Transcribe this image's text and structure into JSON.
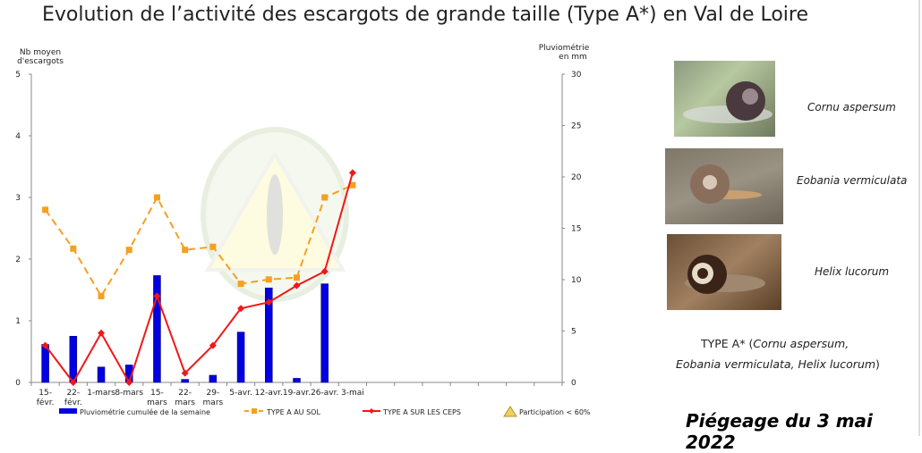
{
  "title": "Evolution de l’activité des escargots de grande taille (Type A*) en Val de Loire",
  "chart_data": {
    "type": "bar+line",
    "left_axis": {
      "label_line1": "Nb moyen",
      "label_line2": "d'escargots",
      "range": [
        0,
        5
      ],
      "ticks": [
        "0",
        "1",
        "2",
        "3",
        "4",
        "5"
      ]
    },
    "right_axis": {
      "label_line1": "Pluviométrie",
      "label_line2": "en mm",
      "range": [
        0,
        30
      ],
      "ticks": [
        "0",
        "5",
        "10",
        "15",
        "20",
        "25",
        "30"
      ]
    },
    "categories": [
      [
        "15-",
        "févr."
      ],
      [
        "22-",
        "févr."
      ],
      [
        "1-mars",
        ""
      ],
      [
        "8-mars",
        ""
      ],
      [
        "15-",
        "mars"
      ],
      [
        "22-",
        "mars"
      ],
      [
        "29-",
        "mars"
      ],
      [
        "5-avr.",
        ""
      ],
      [
        "12-avr.",
        ""
      ],
      [
        "19-avr.",
        ""
      ],
      [
        "26-avr.",
        ""
      ],
      [
        "3-mai",
        ""
      ]
    ],
    "series": [
      {
        "name": "Pluviométrie cumulée de la semaine",
        "type": "bar",
        "axis": "right",
        "color": "#0000e0",
        "values": [
          3.7,
          4.5,
          1.5,
          1.7,
          10.4,
          0.3,
          0.7,
          4.9,
          9.2,
          0.4,
          9.6,
          null
        ]
      },
      {
        "name": "TYPE A AU SOL",
        "type": "line-dashed",
        "axis": "left",
        "color": "#f5a020",
        "values": [
          2.8,
          2.17,
          1.4,
          2.15,
          3.0,
          2.15,
          2.2,
          1.6,
          1.67,
          1.7,
          3.0,
          3.2
        ]
      },
      {
        "name": "TYPE A SUR LES CEPS",
        "type": "line",
        "axis": "left",
        "color": "#f01818",
        "values": [
          0.6,
          0.0,
          0.8,
          0.0,
          1.4,
          0.15,
          0.6,
          1.2,
          1.3,
          1.57,
          1.8,
          3.4
        ]
      }
    ],
    "legend_extra": "Participation < 60%",
    "legend_position": "bottom",
    "grid": false
  },
  "species": [
    {
      "name": "Cornu aspersum"
    },
    {
      "name": "Eobania vermiculata"
    },
    {
      "name": "Helix lucorum"
    }
  ],
  "type_note": {
    "prefix": "TYPE A* (",
    "line1_italic": "Cornu aspersum,",
    "line2_italic": "Eobania vermiculata, Helix lucorum",
    "suffix": ")"
  },
  "footer": "Piégeage du 3 mai 2022"
}
